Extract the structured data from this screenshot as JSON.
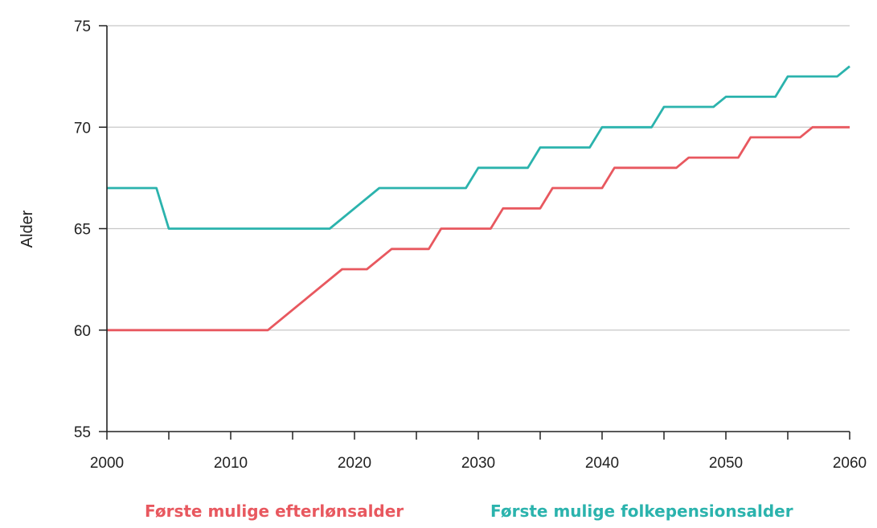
{
  "chart_data": {
    "type": "line",
    "title": "",
    "xlabel": "",
    "ylabel": "Alder",
    "xlim": [
      2000,
      2060
    ],
    "ylim": [
      55,
      75
    ],
    "x_ticks": [
      2000,
      2010,
      2020,
      2030,
      2040,
      2050,
      2060
    ],
    "y_ticks": [
      55,
      60,
      65,
      70,
      75
    ],
    "grid": "horizontal",
    "legend_position": "bottom",
    "series": [
      {
        "name": "Første mulige efterlønsalder",
        "color": "#e8585f",
        "points": [
          [
            2000,
            60
          ],
          [
            2013,
            60
          ],
          [
            2019,
            63
          ],
          [
            2021,
            63
          ],
          [
            2023,
            64
          ],
          [
            2026,
            64
          ],
          [
            2027,
            65
          ],
          [
            2031,
            65
          ],
          [
            2032,
            66
          ],
          [
            2035,
            66
          ],
          [
            2036,
            67
          ],
          [
            2040,
            67
          ],
          [
            2041,
            68
          ],
          [
            2044,
            68
          ],
          [
            2045,
            68
          ],
          [
            2046,
            68
          ],
          [
            2047,
            68.5
          ],
          [
            2051,
            68.5
          ],
          [
            2052,
            69.5
          ],
          [
            2056,
            69.5
          ],
          [
            2057,
            70
          ],
          [
            2060,
            70
          ]
        ]
      },
      {
        "name": "Første mulige folkepensionsalder",
        "color": "#2bb3ad",
        "points": [
          [
            2000,
            67
          ],
          [
            2004,
            67
          ],
          [
            2005,
            65
          ],
          [
            2018,
            65
          ],
          [
            2022,
            67
          ],
          [
            2029,
            67
          ],
          [
            2030,
            68
          ],
          [
            2034,
            68
          ],
          [
            2035,
            69
          ],
          [
            2039,
            69
          ],
          [
            2040,
            70
          ],
          [
            2044,
            70
          ],
          [
            2045,
            71
          ],
          [
            2049,
            71
          ],
          [
            2050,
            71.5
          ],
          [
            2054,
            71.5
          ],
          [
            2055,
            72.5
          ],
          [
            2059,
            72.5
          ],
          [
            2060,
            73
          ]
        ]
      }
    ]
  }
}
